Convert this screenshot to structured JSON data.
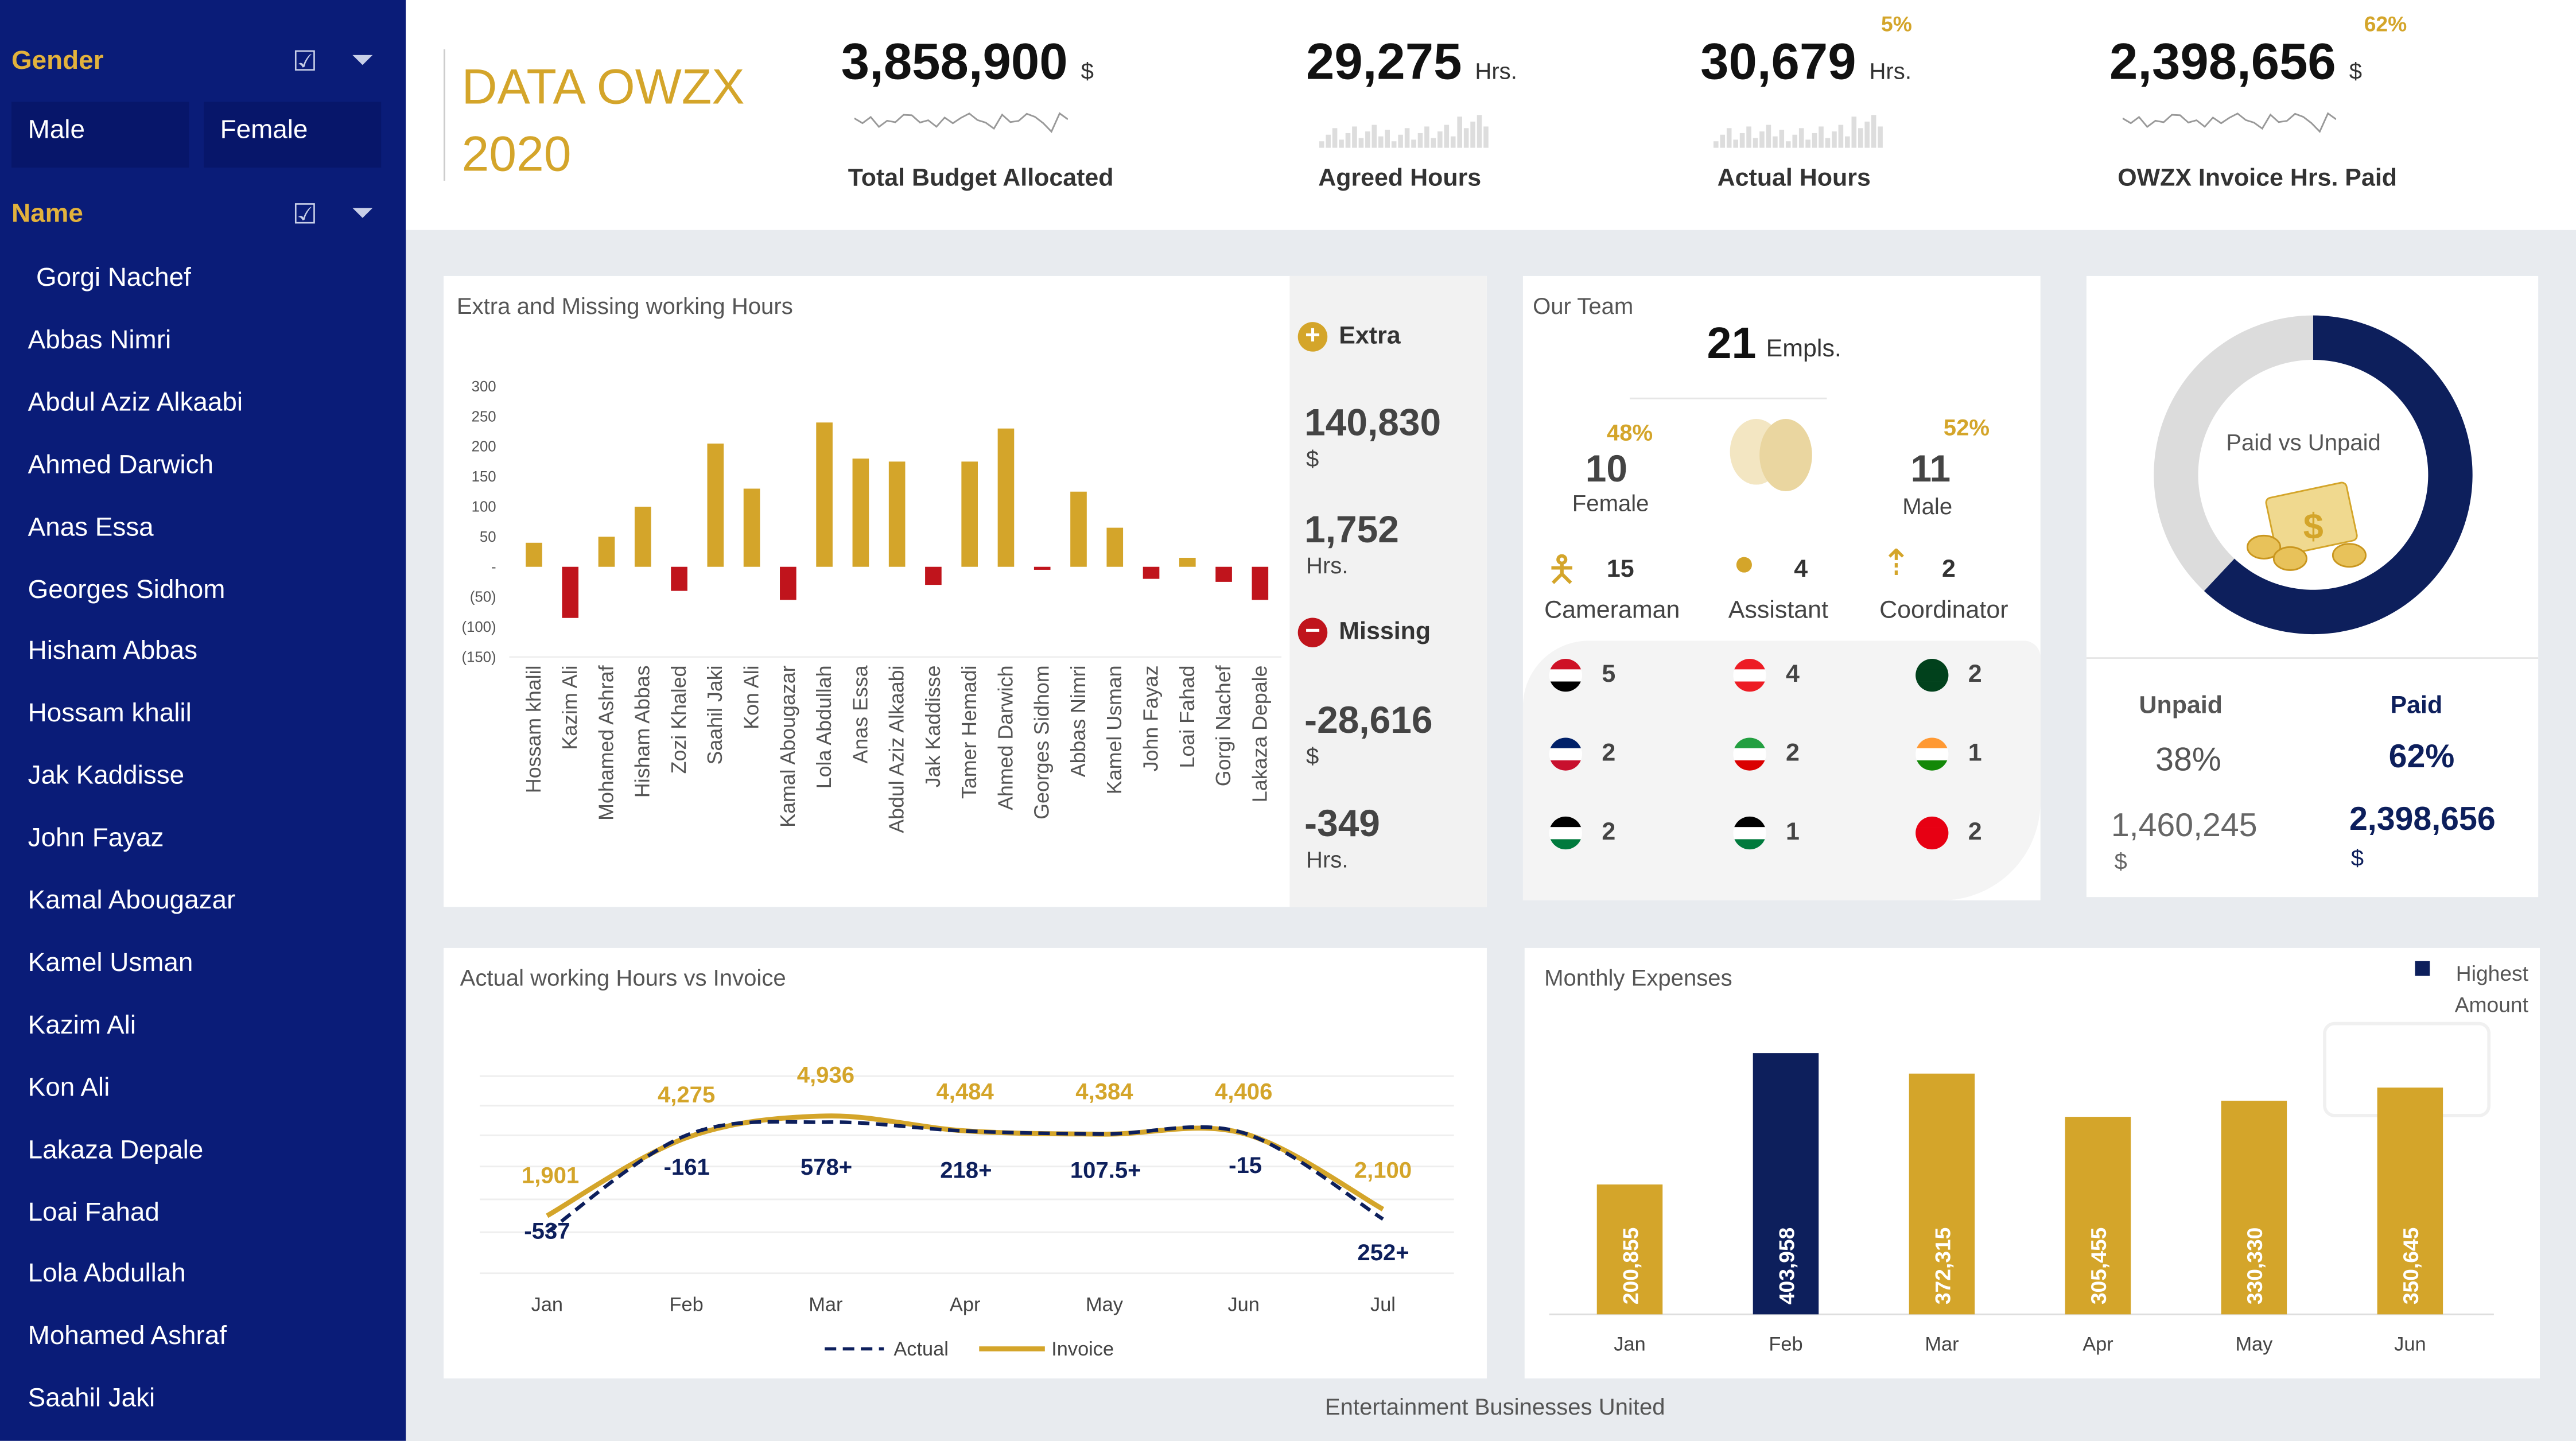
{
  "colors": {
    "sidebar": "#0a1c78",
    "gold": "#d4a52a",
    "red": "#c0141c",
    "navy": "#0d1f5c",
    "grey": "#dcdcdc"
  },
  "sidebar": {
    "gender_header": "Gender",
    "name_header": "Name",
    "icons": [
      "multi-select-icon",
      "clear-filter-icon"
    ],
    "gender_options": [
      "Male",
      "Female"
    ],
    "names": [
      "Gorgi Nachef",
      "Abbas Nimri",
      "Abdul Aziz Alkaabi",
      "Ahmed Darwich",
      "Anas Essa",
      "Georges Sidhom",
      "Hisham Abbas",
      "Hossam khalil",
      "Jak Kaddisse",
      "John Fayaz",
      "Kamal Abougazar",
      "Kamel Usman",
      "Kazim Ali",
      "Kon  Ali",
      "Lakaza Depale",
      "Loai Fahad",
      "Lola Abdullah",
      "Mohamed Ashraf",
      "Saahil Jaki"
    ]
  },
  "header": {
    "title_line1": "DATA OWZX",
    "title_line2": "2020",
    "kpis": [
      {
        "value": "3,858,900",
        "unit": "$",
        "label": "Total Budget Allocated",
        "pct": ""
      },
      {
        "value": "29,275",
        "unit": "Hrs.",
        "label": "Agreed Hours",
        "pct": ""
      },
      {
        "value": "30,679",
        "unit": "Hrs.",
        "label": "Actual Hours",
        "pct": "5%"
      },
      {
        "value": "2,398,656",
        "unit": "$",
        "label": "OWZX Invoice Hrs. Paid",
        "pct": "62%"
      }
    ]
  },
  "extra_missing": {
    "title": "Extra and Missing working Hours",
    "extra_label": "Extra",
    "extra_amount": "140,830",
    "extra_amount_unit": "$",
    "extra_hours": "1,752",
    "extra_hours_unit": "Hrs.",
    "missing_label": "Missing",
    "missing_amount": "-28,616",
    "missing_amount_unit": "$",
    "missing_hours": "-349",
    "missing_hours_unit": "Hrs."
  },
  "team": {
    "title": "Our Team",
    "total": "21",
    "total_unit": "Empls.",
    "female_pct": "48%",
    "female_count": "10",
    "female_label": "Female",
    "male_pct": "52%",
    "male_count": "11",
    "male_label": "Male",
    "roles": [
      {
        "icon": "cameraman-icon",
        "count": "15",
        "label": "Cameraman"
      },
      {
        "icon": "assistant-icon",
        "count": "4",
        "label": "Assistant"
      },
      {
        "icon": "coordinator-icon",
        "count": "2",
        "label": "Coordinator"
      }
    ],
    "countries": [
      {
        "flag": "egypt-flag-icon",
        "count": "5",
        "colors": [
          "#ce1126",
          "#ffffff",
          "#000000"
        ]
      },
      {
        "flag": "lebanon-flag-icon",
        "count": "4",
        "colors": [
          "#ed1c24",
          "#ffffff",
          "#ed1c24"
        ]
      },
      {
        "flag": "pakistan-flag-icon",
        "count": "2",
        "colors": [
          "#01411c",
          "#01411c",
          "#01411c"
        ]
      },
      {
        "flag": "uk-flag-icon",
        "count": "2",
        "colors": [
          "#012169",
          "#ffffff",
          "#c8102e"
        ]
      },
      {
        "flag": "iran-flag-icon",
        "count": "2",
        "colors": [
          "#239f40",
          "#ffffff",
          "#da0000"
        ]
      },
      {
        "flag": "india-flag-icon",
        "count": "1",
        "colors": [
          "#ff9933",
          "#ffffff",
          "#138808"
        ]
      },
      {
        "flag": "jordan-flag-icon",
        "count": "2",
        "colors": [
          "#000000",
          "#ffffff",
          "#007a3d"
        ]
      },
      {
        "flag": "palestine-flag-icon",
        "count": "1",
        "colors": [
          "#000000",
          "#ffffff",
          "#007a3d"
        ]
      },
      {
        "flag": "tunisia-flag-icon",
        "count": "2",
        "colors": [
          "#e70013",
          "#e70013",
          "#e70013"
        ]
      }
    ]
  },
  "paid": {
    "donut_label": "Paid vs Unpaid",
    "unpaid_label": "Unpaid",
    "unpaid_pct": "38%",
    "unpaid_amount": "1,460,245",
    "unpaid_unit": "$",
    "paid_label": "Paid",
    "paid_pct": "62%",
    "paid_amount": "2,398,656",
    "paid_unit": "$",
    "paid_fraction": 0.62
  },
  "footer": "Entertainment Businesses United",
  "chart_data": [
    {
      "type": "bar",
      "title": "Extra and Missing working Hours",
      "ylim": [
        -150,
        300
      ],
      "yticks": [
        "300",
        "250",
        "200",
        "150",
        "100",
        "50",
        "-",
        "(50)",
        "(100)",
        "(150)"
      ],
      "categories": [
        "Hossam khalil",
        "Kazim Ali",
        "Mohamed Ashraf",
        "Hisham Abbas",
        "Zozi Khaled",
        "Saahil Jaki",
        "Kon  Ali",
        "Kamal Abougazar",
        "Lola Abdullah",
        "Anas Essa",
        "Abdul Aziz Alkaabi",
        "Jak Kaddisse",
        "Tamer Hemadi",
        "Ahmed Darwich",
        "Georges Sidhom",
        "Abbas Nimri",
        "Kamel Usman",
        "John Fayaz",
        "Loai Fahad",
        "Gorgi Nachef",
        "Lakaza Depale"
      ],
      "values": [
        40,
        -85,
        50,
        100,
        -40,
        205,
        130,
        -55,
        240,
        180,
        175,
        -30,
        175,
        230,
        -5,
        125,
        65,
        -20,
        15,
        -25,
        -55
      ]
    },
    {
      "type": "line",
      "title": "Actual working Hours vs Invoice",
      "categories": [
        "Jan",
        "Feb",
        "Mar",
        "Apr",
        "May",
        "Jun",
        "Jul"
      ],
      "series": [
        {
          "name": "Actual",
          "values": [
            1400,
            4350,
            4750,
            4480,
            4390,
            4420,
            1800
          ],
          "labels": [
            "-537",
            "-161",
            "578+",
            "218+",
            "107.5+",
            "-15",
            "252+"
          ]
        },
        {
          "name": "Invoice",
          "values": [
            1901,
            4275,
            4936,
            4484,
            4384,
            4406,
            2100
          ],
          "labels": [
            "1,901",
            "4,275",
            "4,936",
            "4,484",
            "4,384",
            "4,406",
            "2,100"
          ]
        }
      ]
    },
    {
      "type": "bar",
      "title": "Monthly Expenses",
      "legend": "Highest Amount",
      "legend_placement": "top-right",
      "categories": [
        "Jan",
        "Feb",
        "Mar",
        "Apr",
        "May",
        "Jun"
      ],
      "values": [
        200855,
        403958,
        372315,
        305455,
        330330,
        350645
      ],
      "labels": [
        "200,855",
        "403,958",
        "372,315",
        "305,455",
        "330,330",
        "350,645"
      ],
      "highest_index": 1
    }
  ]
}
